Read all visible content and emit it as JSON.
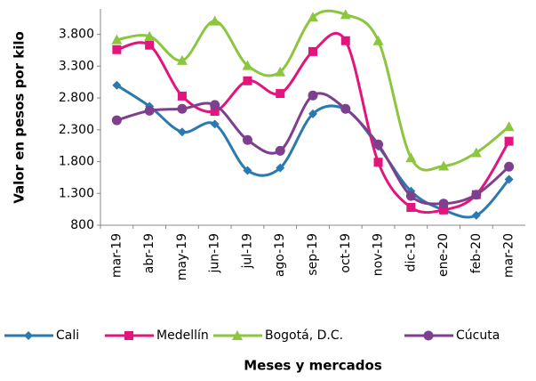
{
  "chart_data": {
    "type": "line",
    "categories": [
      "mar-19",
      "abr-19",
      "may-19",
      "jun-19",
      "jul-19",
      "ago-19",
      "sep-19",
      "oct-19",
      "nov-19",
      "dic-19",
      "ene-20",
      "feb-20",
      "mar-20"
    ],
    "series": [
      {
        "name": "Cali",
        "color": "#2a7ab0",
        "marker": "diamond",
        "values": [
          3000,
          2670,
          2265,
          2390,
          1660,
          1700,
          2550,
          2620,
          2040,
          1335,
          1040,
          955,
          1520
        ]
      },
      {
        "name": "Medellín",
        "color": "#e2157c",
        "marker": "square",
        "values": [
          3560,
          3630,
          2830,
          2590,
          3070,
          2870,
          3530,
          3700,
          1790,
          1080,
          1040,
          1280,
          2120
        ]
      },
      {
        "name": "Bogotá, D.C.",
        "color": "#8cc63e",
        "marker": "triangle",
        "values": [
          3715,
          3770,
          3390,
          4010,
          3310,
          3210,
          4070,
          4110,
          3700,
          1860,
          1730,
          1940,
          2350
        ]
      },
      {
        "name": "Cúcuta",
        "color": "#7e3f8e",
        "marker": "circle",
        "values": [
          2450,
          2600,
          2630,
          2690,
          2140,
          1970,
          2840,
          2630,
          2070,
          1260,
          1140,
          1280,
          1720
        ]
      }
    ],
    "ylim": [
      800,
      4200
    ],
    "yticks": [
      800,
      {
        "value": 1300,
        "label": "1.300"
      },
      {
        "value": 1800,
        "label": "1.800"
      },
      {
        "value": 2300,
        "label": "2.300"
      },
      {
        "value": 2800,
        "label": "2.800"
      },
      {
        "value": 3300,
        "label": "3.300"
      },
      {
        "value": 3800,
        "label": "3.800"
      }
    ],
    "y_label": "Valor en pesos por kilo",
    "x_label": "Meses  y mercados",
    "grid": false,
    "legend": "bottom"
  }
}
